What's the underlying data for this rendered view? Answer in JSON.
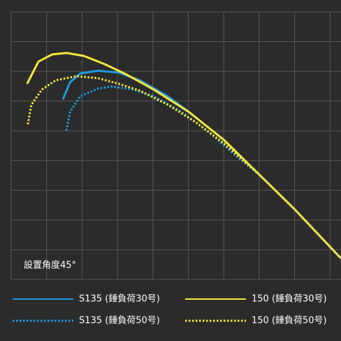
{
  "chart_data": {
    "type": "line",
    "annotation": "設置角度45°",
    "xlim": [
      0,
      9.31
    ],
    "ylim": [
      0,
      9
    ],
    "xticks": [
      0,
      1,
      2,
      3,
      4,
      5,
      6,
      7,
      8,
      9
    ],
    "yticks": [
      0,
      1,
      2,
      3,
      4,
      5,
      6,
      7,
      8,
      9
    ],
    "grid": true,
    "series": [
      {
        "name": "S135 (錘負荷30号)",
        "color": "#1e9be0",
        "dotted": false,
        "x": [
          1.46,
          1.66,
          1.95,
          2.45,
          3.04,
          3.63,
          4.42,
          5.01,
          6.0,
          7.0,
          8.01,
          9.31
        ],
        "values": [
          6.06,
          6.63,
          6.93,
          7.02,
          6.96,
          6.7,
          6.16,
          5.64,
          4.7,
          3.53,
          2.35,
          0.71
        ]
      },
      {
        "name": "150 (錘負荷30号)",
        "color": "#f5e83a",
        "dotted": false,
        "x": [
          0.45,
          0.77,
          1.16,
          1.56,
          2.05,
          2.64,
          3.23,
          4.02,
          5.01,
          6.0,
          7.0,
          8.01,
          9.31
        ],
        "values": [
          6.58,
          7.33,
          7.57,
          7.62,
          7.52,
          7.24,
          6.91,
          6.39,
          5.64,
          4.7,
          3.53,
          2.35,
          0.71
        ]
      },
      {
        "name": "S135 (錘負荷50号)",
        "color": "#1e9be0",
        "dotted": true,
        "x": [
          1.56,
          1.66,
          1.95,
          2.45,
          2.84,
          3.43,
          4.02,
          4.81,
          5.6,
          6.39,
          7.0,
          8.01,
          9.31
        ],
        "values": [
          5.01,
          5.64,
          6.16,
          6.42,
          6.49,
          6.39,
          6.16,
          5.64,
          4.94,
          4.11,
          3.53,
          2.35,
          0.71
        ]
      },
      {
        "name": "150 (錘負荷50号)",
        "color": "#f5e83a",
        "dotted": true,
        "x": [
          0.47,
          0.57,
          0.87,
          1.26,
          1.85,
          2.45,
          3.04,
          3.63,
          4.42,
          5.21,
          6.0,
          7.0,
          8.01,
          9.31
        ],
        "values": [
          5.22,
          5.88,
          6.39,
          6.7,
          6.84,
          6.77,
          6.58,
          6.35,
          5.88,
          5.29,
          4.58,
          3.53,
          2.35,
          0.71
        ]
      }
    ]
  }
}
